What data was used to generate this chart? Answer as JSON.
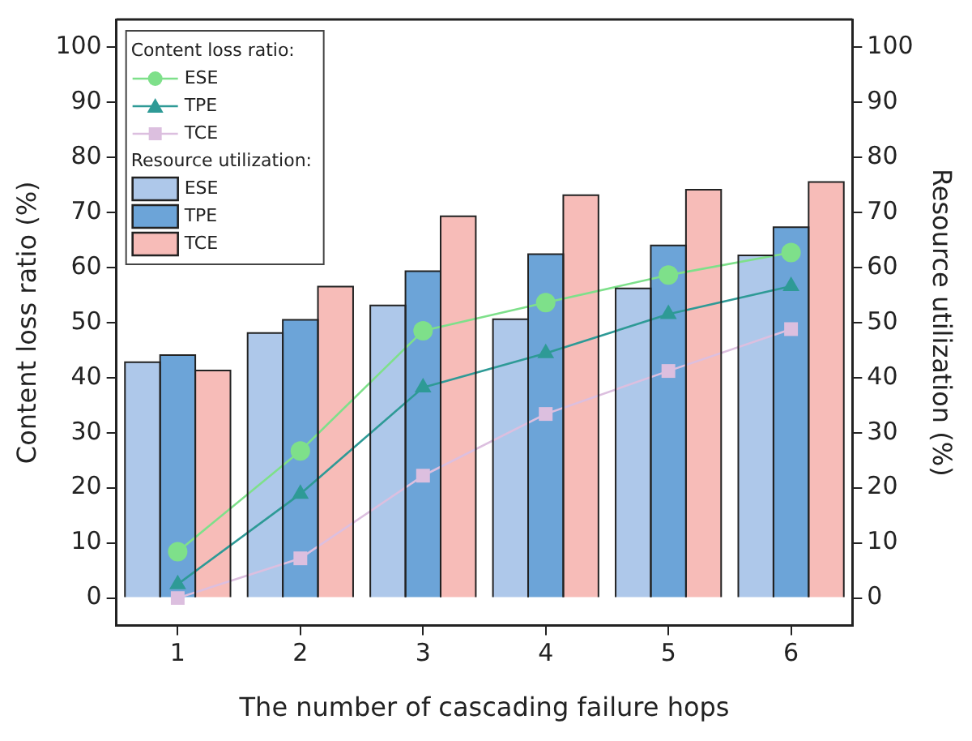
{
  "chart_data": {
    "type": "bar",
    "xlabel": "The number of cascading failure hops",
    "ylabel": "Content loss ratio (%)",
    "y2label": "Resource utilization (%)",
    "categories": [
      "1",
      "2",
      "3",
      "4",
      "5",
      "6"
    ],
    "ylim": [
      -5,
      105
    ],
    "yticks": [
      0,
      10,
      20,
      30,
      40,
      50,
      60,
      70,
      80,
      90,
      100
    ],
    "y2lim": [
      -5,
      105
    ],
    "y2ticks": [
      0,
      10,
      20,
      30,
      40,
      50,
      60,
      70,
      80,
      90,
      100
    ],
    "legend": "top left",
    "legend_title": "Content loss ratio:",
    "annotations": [
      "Resource utilization:"
    ],
    "grid": false,
    "series": [
      {
        "name": "ESE",
        "type": "line",
        "marker": "circle",
        "color": "#7ee08a",
        "values": [
          8.4,
          26.7,
          48.5,
          53.6,
          58.6,
          62.7
        ]
      },
      {
        "name": "TPE",
        "type": "line",
        "marker": "triangle",
        "color": "#2e9a96",
        "values": [
          2.5,
          18.9,
          38.2,
          44.4,
          51.5,
          56.6
        ]
      },
      {
        "name": "TCE",
        "type": "line",
        "marker": "square",
        "color": "#dcbfdf",
        "values": [
          0,
          7.2,
          22.2,
          33.4,
          41.2,
          48.8
        ]
      },
      {
        "name": "ESE",
        "type": "bar",
        "color": "#aec8ea",
        "values": [
          42.8,
          48.1,
          53.1,
          50.6,
          56.2,
          62.2
        ]
      },
      {
        "name": "TPE",
        "type": "bar",
        "color": "#6ca4d8",
        "values": [
          44.1,
          50.5,
          59.3,
          62.4,
          64.0,
          67.3
        ]
      },
      {
        "name": "TCE",
        "type": "bar",
        "color": "#f7bcb8",
        "values": [
          41.3,
          56.5,
          69.3,
          73.1,
          74.1,
          75.5
        ]
      }
    ]
  }
}
